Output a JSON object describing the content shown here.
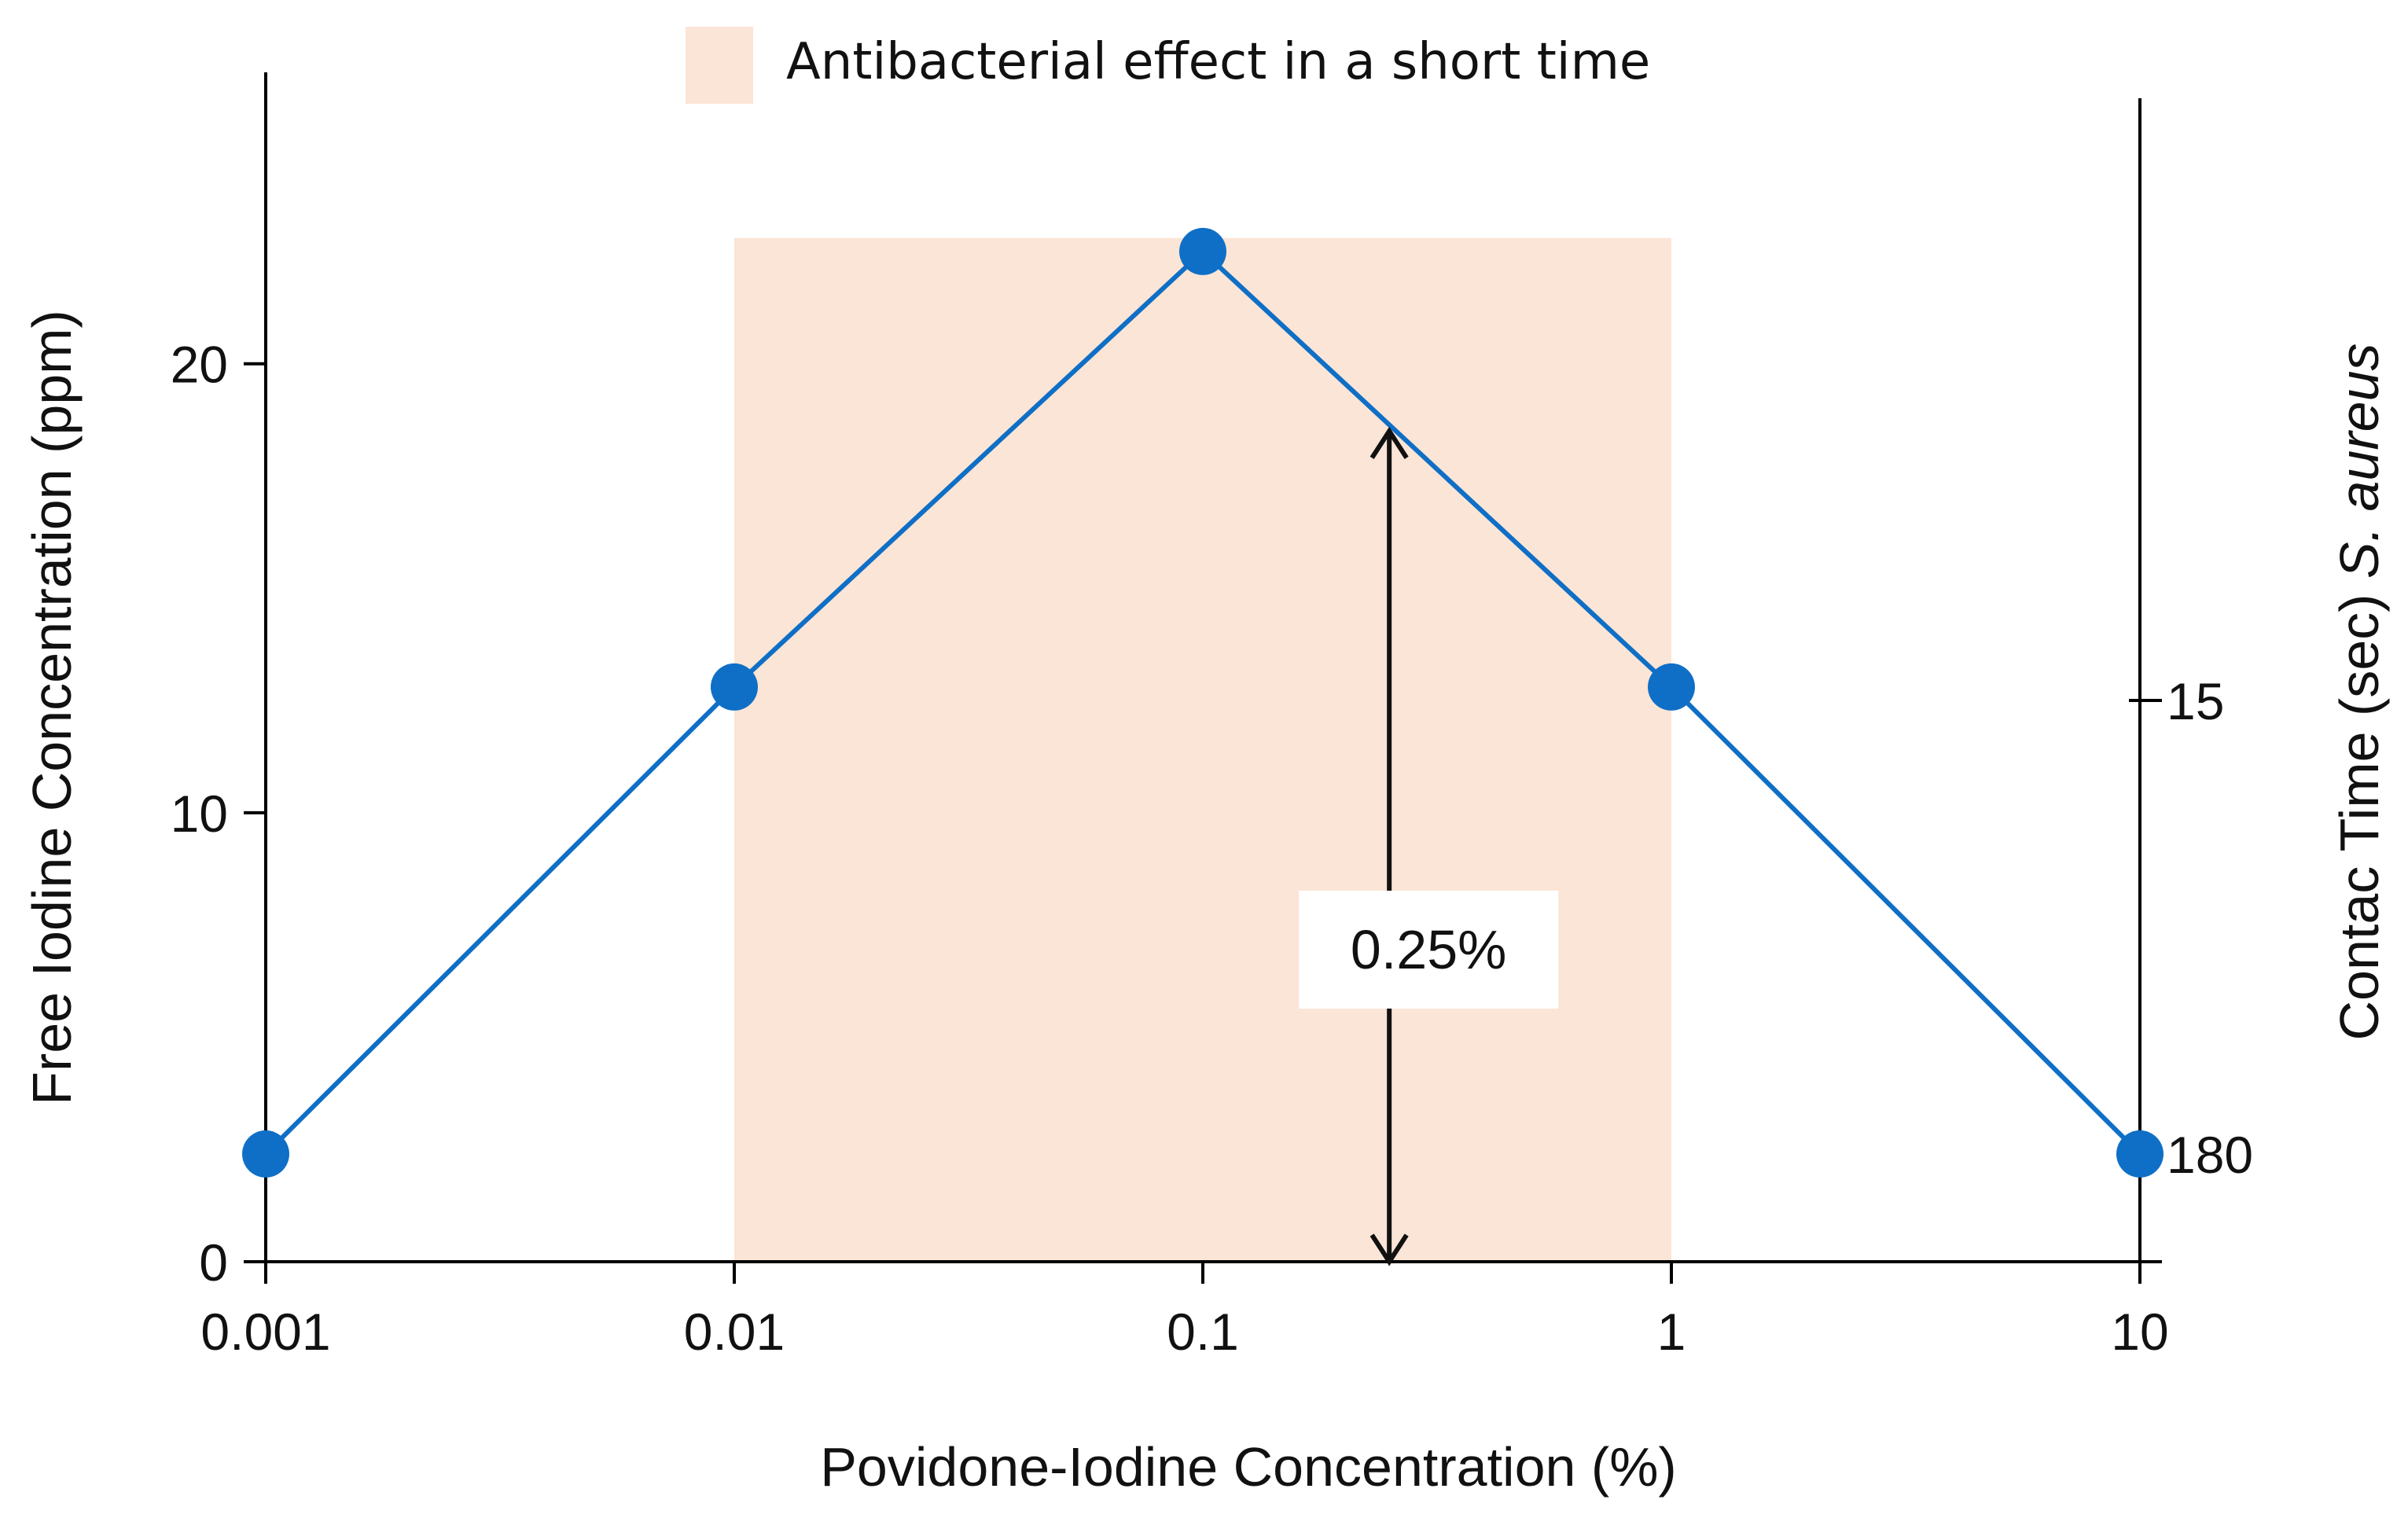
{
  "chart_data": {
    "type": "line",
    "x_scale": "log",
    "xlabel": "Povidone-Iodine Concentration (%)",
    "ylabel": "Free Iodine Concentration (ppm)",
    "y2label_prefix": "Contac Time (sec) ",
    "y2label_italic": "S. aureus",
    "x_ticks": [
      0.001,
      0.01,
      0.1,
      1,
      10
    ],
    "x_tick_labels": [
      "0.001",
      "0.01",
      "0.1",
      "1",
      "10"
    ],
    "xlim": [
      0.001,
      10
    ],
    "ylim": [
      0,
      26
    ],
    "y_ticks": [
      0,
      10,
      20
    ],
    "y_tick_labels": [
      "0",
      "10",
      "20"
    ],
    "y2_ticks": [
      {
        "label": "15",
        "at_y": 12.5
      },
      {
        "label": "180",
        "at_y": 2.4
      }
    ],
    "series": [
      {
        "x": [
          0.001,
          0.01,
          0.1,
          1,
          10
        ],
        "y": [
          2.4,
          12.8,
          22.5,
          12.8,
          2.4
        ],
        "color": "#0f6fc6"
      }
    ],
    "highlight_region": {
      "x_range": [
        0.01,
        1
      ],
      "y_top": 22.8,
      "color": "#fbe5d6",
      "legend_label": "Antibacterial effect in a short time"
    },
    "annotation": {
      "text": "0.25%",
      "x": 0.25,
      "y_range": [
        0,
        18.5
      ]
    },
    "grid": false
  }
}
